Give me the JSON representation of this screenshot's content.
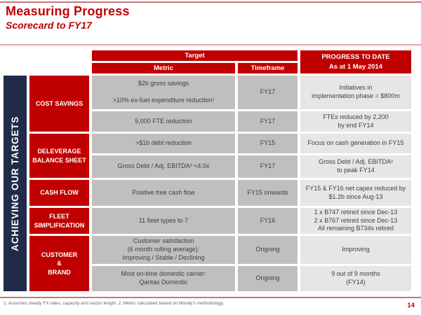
{
  "slide": {
    "title": "Measuring Progress",
    "subtitle": "Scorecard to FY17",
    "footnote": "1. Assumes steady FX rates, capacity and sector length. 2. Metric calculated based on Moody's methodology.",
    "page_number": "14"
  },
  "sidebar": {
    "label": "ACHIEVING OUR TARGETS"
  },
  "table": {
    "headers": {
      "target": "Target",
      "metric": "Metric",
      "timeframe": "Timeframe",
      "progress_line1": "PROGRESS TO DATE",
      "progress_line2": "As at 1 May 2014"
    },
    "categories": [
      {
        "label": "COST SAVINGS"
      },
      {
        "label": "DELEVERAGE\nBALANCE SHEET"
      },
      {
        "label": "CASH FLOW"
      },
      {
        "label": "FLEET\nSIMPLIFICATION"
      },
      {
        "label": "CUSTOMER\n&\nBRAND"
      }
    ],
    "rows": [
      {
        "metric": "$2b gross savings\n\n>10% ex-fuel expenditure reduction¹",
        "timeframe": "FY17",
        "progress": "Initiatives in\nimplementation phase = $800m"
      },
      {
        "metric": "5,000 FTE reduction",
        "timeframe": "FY17",
        "progress": "FTEs reduced by 2,200\nby end FY14"
      },
      {
        "metric": ">$1b debt reduction",
        "timeframe": "FY15",
        "progress": "Focus on cash generation in FY15"
      },
      {
        "metric": "Gross Debt / Adj. EBITDA² <4.0x",
        "timeframe": "FY17",
        "progress": "Gross Debt / Adj. EBITDA²\nto peak FY14"
      },
      {
        "metric": "Positive free cash flow",
        "timeframe": "FY15 onwards",
        "progress": "FY15 & FY16 net capex reduced by\n$1.2b since Aug-13"
      },
      {
        "metric": "11 fleet types to 7",
        "timeframe": "FY16",
        "progress": "1 x B747 retired since Dec-13\n2 x B767 retired since Dec-13\nAll remaining B734s retired"
      },
      {
        "metric": "Customer satisfaction\n(6 month rolling average):\nImproving / Stable / Declining",
        "timeframe": "Ongoing",
        "progress": "Improving"
      },
      {
        "metric": "Most on-time domestic carrier:\nQantas Domestic",
        "timeframe": "Ongoing",
        "progress": "9 out of 9 months\n(FY14)"
      }
    ]
  },
  "colors": {
    "brand_red": "#c00000",
    "navy": "#1f2b49",
    "cell_gray": "#bfbfbf",
    "progress_gray": "#e6e6e6"
  }
}
